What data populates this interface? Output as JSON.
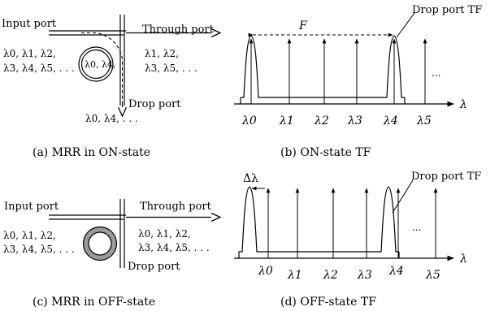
{
  "panel_a": {
    "input_port": "Input port",
    "through_port": "Through port",
    "drop_port": "Drop port",
    "input_wl_line1": "λ0, λ1, λ2,",
    "input_wl_line2": "λ3, λ4, λ5, . . .",
    "ring_wl": "λ0, λ4,",
    "through_wl_line1": "λ1, λ2,",
    "through_wl_line2": "λ3, λ5, . . .",
    "drop_wl": "λ0, λ4, . . .",
    "caption": "(a) MRR in ON-state"
  },
  "panel_b": {
    "drop_port_tf": "Drop port TF",
    "fsr": "F",
    "axis": "λ",
    "ellipsis": "...",
    "ticks": [
      "λ0",
      "λ1",
      "λ2",
      "λ3",
      "λ4",
      "λ5"
    ],
    "caption": "(b) ON-state TF"
  },
  "panel_c": {
    "input_port": "Input port",
    "through_port": "Through port",
    "drop_port": "Drop port",
    "input_wl_line1": "λ0, λ1, λ2,",
    "input_wl_line2": "λ3, λ4, λ5, . . .",
    "through_wl_line1": "λ0, λ1, λ2,",
    "through_wl_line2": "λ3, λ4, λ5, . . .",
    "caption": "(c) MRR in OFF-state"
  },
  "panel_d": {
    "drop_port_tf": "Drop port TF",
    "shift": "Δλ",
    "axis": "λ",
    "ellipsis": "...",
    "ticks": [
      "λ0",
      "λ1",
      "λ2",
      "λ3",
      "λ4",
      "λ5"
    ],
    "caption": "(d) OFF-state TF"
  },
  "colors": {
    "ring_off_fill": "#9a9a9a",
    "line": "#000000"
  }
}
